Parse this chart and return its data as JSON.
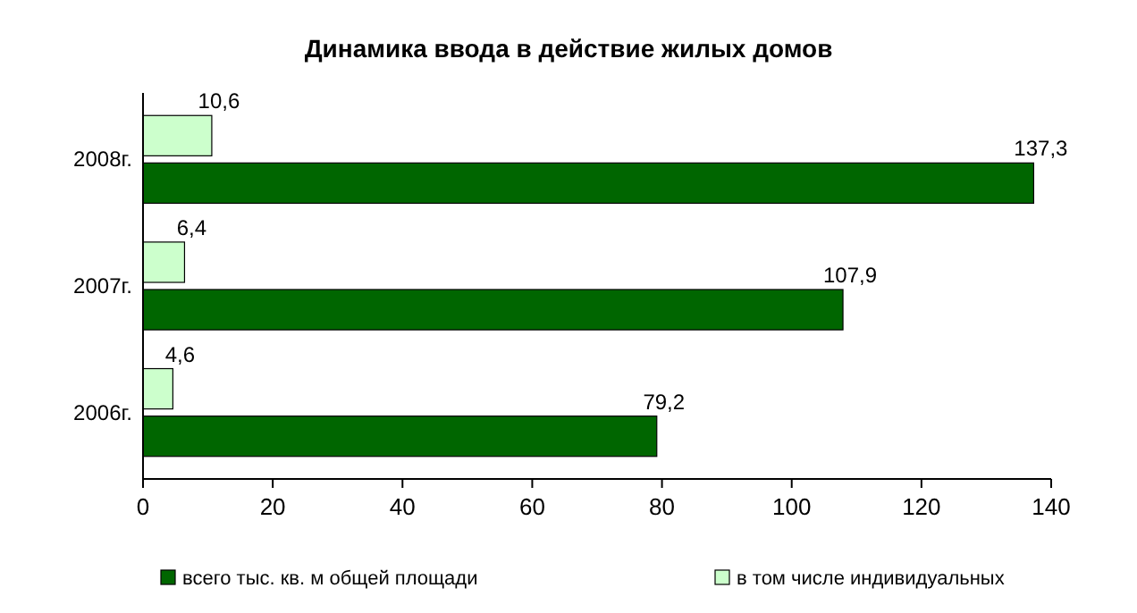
{
  "chart_data": {
    "type": "bar",
    "orientation": "horizontal",
    "title": "Динамика ввода в действие жилых домов",
    "categories": [
      "2008г.",
      "2007г.",
      "2006г."
    ],
    "series": [
      {
        "name": "всего тыс. кв. м общей площади",
        "color": "#006600",
        "values": [
          137.3,
          107.9,
          79.2
        ],
        "value_labels": [
          "137,3",
          "107,9",
          "79,2"
        ]
      },
      {
        "name": "в том числе индивидуальных",
        "color": "#ccffcc",
        "values": [
          10.6,
          6.4,
          4.6
        ],
        "value_labels": [
          "10,6",
          "6,4",
          "4,6"
        ]
      }
    ],
    "xlim": [
      0,
      140
    ],
    "xticks": [
      0,
      20,
      40,
      60,
      80,
      100,
      120,
      140
    ],
    "grid": false,
    "legend": "bottom"
  }
}
